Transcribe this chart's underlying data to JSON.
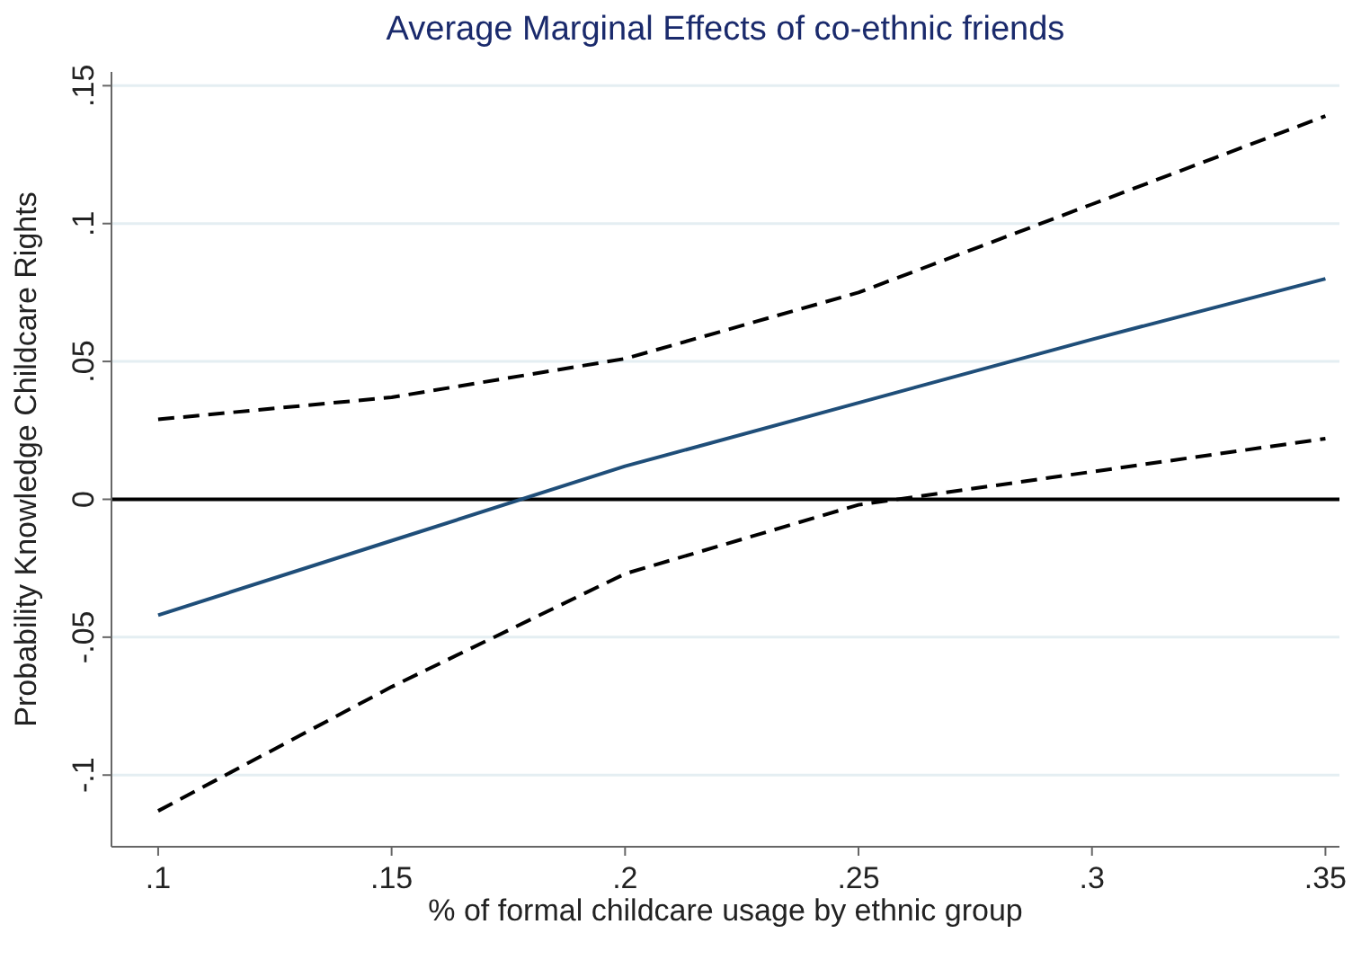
{
  "chart_data": {
    "type": "line",
    "title": "Average Marginal Effects of co-ethnic friends",
    "xlabel": "% of formal childcare usage by ethnic group",
    "ylabel": "Probability Knowledge Childcare Rights",
    "x": [
      0.1,
      0.15,
      0.2,
      0.25,
      0.3,
      0.35
    ],
    "series": [
      {
        "color": "#1f4e79",
        "values": [
          -0.042,
          -0.015,
          0.012,
          0.035,
          0.058,
          0.08
        ],
        "line_style": "solid"
      },
      {
        "color": "#000000",
        "values": [
          0.029,
          0.037,
          0.051,
          0.075,
          0.107,
          0.139
        ],
        "line_style": "dashed"
      },
      {
        "color": "#000000",
        "values": [
          -0.113,
          -0.068,
          -0.027,
          -0.002,
          0.01,
          0.022
        ],
        "line_style": "dashed"
      }
    ],
    "xlim": [
      0.09,
      0.353
    ],
    "ylim": [
      -0.126,
      0.155
    ],
    "xticks": [
      {
        "value": 0.1,
        "label": ".1"
      },
      {
        "value": 0.15,
        "label": ".15"
      },
      {
        "value": 0.2,
        "label": ".2"
      },
      {
        "value": 0.25,
        "label": ".25"
      },
      {
        "value": 0.3,
        "label": ".3"
      },
      {
        "value": 0.35,
        "label": ".35"
      }
    ],
    "yticks": [
      {
        "value": -0.1,
        "label": "-.1"
      },
      {
        "value": -0.05,
        "label": "-.05"
      },
      0,
      {
        "value": 0.05,
        "label": ".05"
      },
      {
        "value": 0.1,
        "label": ".1"
      },
      {
        "value": 0.15,
        "label": ".15"
      }
    ],
    "grid": "y",
    "marker": "none",
    "ref_lines": [
      {
        "axis": "y",
        "value": 0,
        "color": "#000000"
      }
    ]
  }
}
